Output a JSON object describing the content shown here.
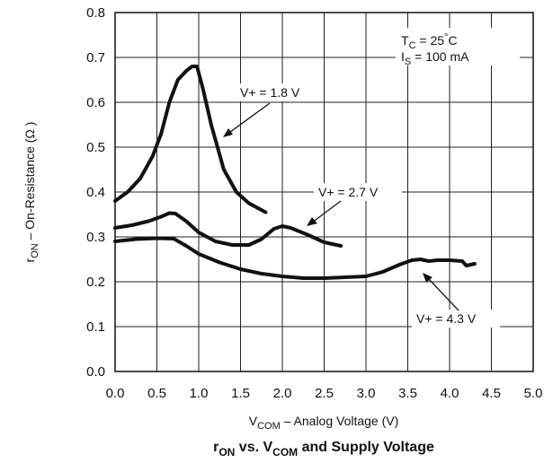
{
  "chart_data": {
    "type": "line",
    "title": {
      "r": "r",
      "on_sub": "ON",
      "mid": " vs. V",
      "com_sub": "COM",
      "rest": " and Supply Voltage"
    },
    "xlabel": {
      "main": "V",
      "sub": "COM",
      "rest": " – Analog Voltage (V)"
    },
    "ylabel": {
      "main": "r",
      "sub": "ON",
      "rest": " – On-Resistance (Ω )"
    },
    "xlim": [
      0,
      5
    ],
    "ylim": [
      0,
      0.8
    ],
    "xticks": [
      0,
      0.5,
      1,
      1.5,
      2,
      2.5,
      3,
      3.5,
      4,
      4.5,
      5
    ],
    "yticks": [
      0,
      0.1,
      0.2,
      0.3,
      0.4,
      0.5,
      0.6,
      0.7,
      0.8
    ],
    "xtick_labels": [
      "0.0",
      "0.5",
      "1.0",
      "1.5",
      "2.0",
      "2.5",
      "3.0",
      "3.5",
      "4.0",
      "4.5",
      "5.0"
    ],
    "ytick_labels": [
      "0.0",
      "0.1",
      "0.2",
      "0.3",
      "0.4",
      "0.5",
      "0.6",
      "0.7",
      "0.8"
    ],
    "grid": true,
    "conditions": {
      "tc_main": "T",
      "tc_sub": "C",
      "tc_rest": " = 25",
      "tc_deg": "°",
      "tc_unit": "C",
      "is_main": "I",
      "is_sub": "S",
      "is_rest": " = 100 mA"
    },
    "series": [
      {
        "name": "V+ = 1.8 V",
        "x": [
          0.0,
          0.15,
          0.3,
          0.45,
          0.55,
          0.65,
          0.75,
          0.85,
          0.92,
          0.98,
          1.05,
          1.15,
          1.3,
          1.45,
          1.6,
          1.8
        ],
        "y": [
          0.38,
          0.4,
          0.43,
          0.48,
          0.53,
          0.6,
          0.65,
          0.67,
          0.68,
          0.68,
          0.63,
          0.55,
          0.45,
          0.4,
          0.375,
          0.355
        ]
      },
      {
        "name": "V+ = 2.7 V",
        "x": [
          0.0,
          0.2,
          0.4,
          0.55,
          0.65,
          0.72,
          0.85,
          1.0,
          1.2,
          1.4,
          1.6,
          1.75,
          1.9,
          2.0,
          2.1,
          2.3,
          2.5,
          2.7
        ],
        "y": [
          0.32,
          0.326,
          0.335,
          0.345,
          0.353,
          0.352,
          0.335,
          0.31,
          0.29,
          0.282,
          0.282,
          0.295,
          0.318,
          0.324,
          0.32,
          0.305,
          0.288,
          0.28
        ]
      },
      {
        "name": "V+ = 4.3 V",
        "x": [
          0.0,
          0.25,
          0.5,
          0.7,
          0.85,
          1.0,
          1.25,
          1.5,
          1.75,
          2.0,
          2.25,
          2.5,
          2.75,
          3.0,
          3.2,
          3.4,
          3.55,
          3.65,
          3.75,
          3.85,
          4.0,
          4.15,
          4.2,
          4.3
        ],
        "y": [
          0.29,
          0.295,
          0.297,
          0.296,
          0.28,
          0.262,
          0.243,
          0.228,
          0.218,
          0.212,
          0.208,
          0.208,
          0.21,
          0.212,
          0.222,
          0.238,
          0.248,
          0.25,
          0.246,
          0.248,
          0.248,
          0.246,
          0.236,
          0.24
        ]
      }
    ],
    "annotations": [
      {
        "text": "V+ = 1.8 V",
        "series": "V+ = 1.8 V"
      },
      {
        "text": "V+ = 2.7 V",
        "series": "V+ = 2.7 V"
      },
      {
        "text": "V+ = 4.3 V",
        "series": "V+ = 4.3 V"
      }
    ]
  }
}
